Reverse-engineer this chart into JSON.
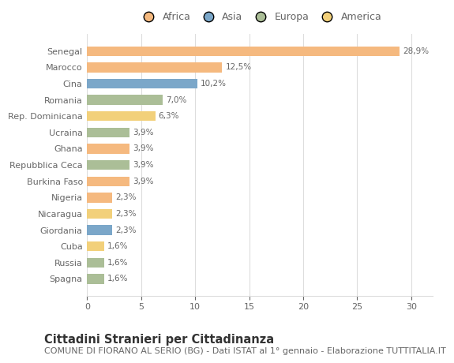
{
  "categories": [
    "Senegal",
    "Marocco",
    "Cina",
    "Romania",
    "Rep. Dominicana",
    "Ucraina",
    "Ghana",
    "Repubblica Ceca",
    "Burkina Faso",
    "Nigeria",
    "Nicaragua",
    "Giordania",
    "Cuba",
    "Russia",
    "Spagna"
  ],
  "values": [
    28.9,
    12.5,
    10.2,
    7.0,
    6.3,
    3.9,
    3.9,
    3.9,
    3.9,
    2.3,
    2.3,
    2.3,
    1.6,
    1.6,
    1.6
  ],
  "labels": [
    "28,9%",
    "12,5%",
    "10,2%",
    "7,0%",
    "6,3%",
    "3,9%",
    "3,9%",
    "3,9%",
    "3,9%",
    "2,3%",
    "2,3%",
    "2,3%",
    "1,6%",
    "1,6%",
    "1,6%"
  ],
  "continents": [
    "Africa",
    "Africa",
    "Asia",
    "Europa",
    "America",
    "Europa",
    "Africa",
    "Europa",
    "Africa",
    "Africa",
    "America",
    "Asia",
    "America",
    "Europa",
    "Europa"
  ],
  "colors": {
    "Africa": "#F5B97F",
    "Asia": "#7BA7C9",
    "Europa": "#ABBE97",
    "America": "#F2D07A"
  },
  "legend_order": [
    "Africa",
    "Asia",
    "Europa",
    "America"
  ],
  "xlim": [
    0,
    32
  ],
  "xticks": [
    0,
    5,
    10,
    15,
    20,
    25,
    30
  ],
  "title": "Cittadini Stranieri per Cittadinanza",
  "subtitle": "COMUNE DI FIORANO AL SERIO (BG) - Dati ISTAT al 1° gennaio - Elaborazione TUTTITALIA.IT",
  "bg_color": "#FFFFFF",
  "plot_bg_color": "#FFFFFF",
  "grid_color": "#DDDDDD",
  "bar_height": 0.6,
  "title_fontsize": 10.5,
  "subtitle_fontsize": 8,
  "label_fontsize": 7.5,
  "tick_fontsize": 8,
  "legend_fontsize": 9,
  "text_color": "#666666"
}
